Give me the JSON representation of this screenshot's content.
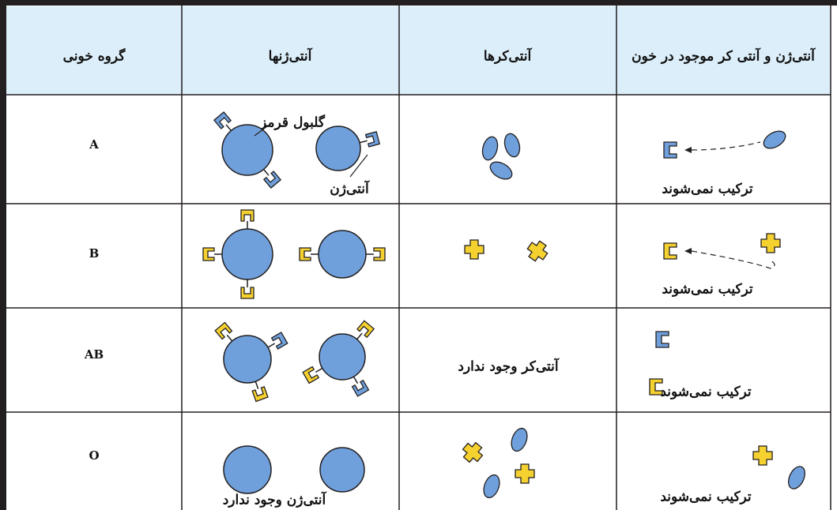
{
  "header": {
    "columns": [
      "گروه خونی",
      "آنتی‌ژنها",
      "آنتی‌کرها",
      "آنتی‌ژن و آنتی کر موجود در خون"
    ]
  },
  "rows": [
    {
      "group": "A",
      "antigen_labels": [
        "گلبول قرمز",
        "آنتی‌ژن"
      ],
      "result": "ترکیب نمی‌شوند"
    },
    {
      "group": "B",
      "result": "ترکیب نمی‌شوند"
    },
    {
      "group": "AB",
      "antibody_note": "آنتی‌کر وجود ندارد",
      "result": "ترکیب نمی‌شوند"
    },
    {
      "group": "O",
      "antigen_note": "آنتی‌ژن وجود ندارد",
      "result": "ترکیب نمی‌شوند"
    }
  ]
}
